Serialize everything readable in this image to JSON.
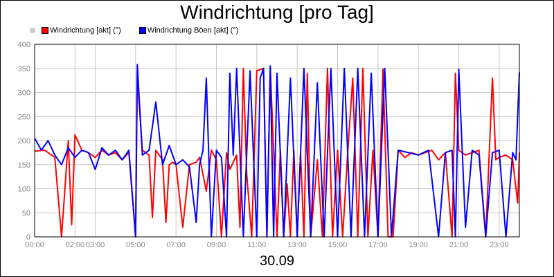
{
  "chart_data": {
    "type": "line",
    "title": "Windrichtung [pro Tag]",
    "xlabel": "30.09",
    "ylabel": "",
    "x_range": [
      "00:00",
      "24:00"
    ],
    "ylim": [
      0,
      400
    ],
    "y_ticks": [
      0,
      50,
      100,
      150,
      200,
      250,
      300,
      350,
      400
    ],
    "x_ticks": [
      "00:00",
      "02:00",
      "03:00",
      "05:00",
      "07:00",
      "09:00",
      "11:00",
      "13:00",
      "15:00",
      "17:00",
      "19:00",
      "21:00",
      "23:00"
    ],
    "grid": true,
    "legend": "top-left",
    "series": [
      {
        "name": "Windrichtung [akt] (°)",
        "color": "#ff0000",
        "x": [
          "00:00",
          "00:30",
          "01:00",
          "01:20",
          "01:40",
          "01:50",
          "02:00",
          "02:20",
          "02:40",
          "03:00",
          "03:20",
          "03:40",
          "04:00",
          "04:20",
          "04:40",
          "05:00",
          "05:05",
          "05:20",
          "05:40",
          "05:50",
          "06:00",
          "06:20",
          "06:30",
          "06:40",
          "06:50",
          "07:00",
          "07:20",
          "07:40",
          "08:00",
          "08:10",
          "08:30",
          "08:45",
          "09:00",
          "09:15",
          "09:30",
          "09:40",
          "10:00",
          "10:10",
          "10:20",
          "10:30",
          "10:45",
          "11:00",
          "11:20",
          "11:30",
          "11:40",
          "11:50",
          "12:00",
          "12:10",
          "12:20",
          "12:30",
          "12:40",
          "12:50",
          "13:00",
          "13:10",
          "13:20",
          "13:30",
          "13:40",
          "14:00",
          "14:15",
          "14:30",
          "14:45",
          "15:00",
          "15:15",
          "15:30",
          "15:45",
          "16:00",
          "16:15",
          "16:30",
          "16:45",
          "17:00",
          "17:15",
          "17:30",
          "17:45",
          "18:00",
          "18:20",
          "18:40",
          "19:00",
          "19:20",
          "19:40",
          "20:00",
          "20:20",
          "20:40",
          "20:50",
          "21:00",
          "21:20",
          "21:40",
          "22:00",
          "22:20",
          "22:40",
          "22:50",
          "23:00",
          "23:20",
          "23:40",
          "23:55",
          "24:00"
        ],
        "y": [
          178,
          180,
          165,
          0,
          200,
          25,
          212,
          180,
          175,
          165,
          180,
          170,
          175,
          160,
          175,
          0,
          335,
          180,
          170,
          40,
          180,
          160,
          30,
          150,
          155,
          150,
          20,
          150,
          155,
          165,
          95,
          180,
          160,
          0,
          175,
          140,
          170,
          20,
          350,
          130,
          0,
          345,
          350,
          0,
          350,
          180,
          0,
          180,
          0,
          110,
          0,
          180,
          0,
          175,
          0,
          340,
          0,
          160,
          0,
          350,
          0,
          180,
          0,
          175,
          330,
          0,
          350,
          0,
          180,
          0,
          348,
          0,
          0,
          180,
          165,
          175,
          170,
          175,
          180,
          160,
          175,
          0,
          340,
          180,
          170,
          175,
          180,
          0,
          330,
          160,
          165,
          170,
          160,
          70,
          175
        ]
      },
      {
        "name": "Windrichtung Böen [akt] (°)",
        "color": "#0000ff",
        "x": [
          "00:00",
          "00:20",
          "00:40",
          "01:00",
          "01:20",
          "01:40",
          "02:00",
          "02:20",
          "02:40",
          "03:00",
          "03:20",
          "03:40",
          "04:00",
          "04:20",
          "04:40",
          "05:00",
          "05:05",
          "05:20",
          "05:40",
          "06:00",
          "06:20",
          "06:40",
          "07:00",
          "07:20",
          "07:40",
          "08:00",
          "08:10",
          "08:20",
          "08:30",
          "08:45",
          "09:00",
          "09:15",
          "09:30",
          "09:40",
          "09:50",
          "10:00",
          "10:20",
          "10:40",
          "11:00",
          "11:10",
          "11:20",
          "11:30",
          "11:40",
          "11:50",
          "12:00",
          "12:20",
          "12:40",
          "13:00",
          "13:20",
          "13:40",
          "14:00",
          "14:20",
          "14:40",
          "15:00",
          "15:20",
          "15:40",
          "16:00",
          "16:20",
          "16:40",
          "17:00",
          "17:20",
          "17:40",
          "18:00",
          "18:30",
          "19:00",
          "19:30",
          "20:00",
          "20:20",
          "20:40",
          "20:50",
          "21:00",
          "21:20",
          "21:40",
          "22:00",
          "22:20",
          "22:40",
          "23:00",
          "23:20",
          "23:40",
          "23:50",
          "24:00"
        ],
        "y": [
          205,
          180,
          200,
          170,
          150,
          185,
          165,
          180,
          175,
          140,
          185,
          170,
          180,
          160,
          180,
          0,
          358,
          170,
          180,
          280,
          150,
          190,
          150,
          160,
          145,
          30,
          150,
          180,
          330,
          0,
          180,
          165,
          0,
          340,
          170,
          350,
          0,
          345,
          0,
          330,
          350,
          0,
          355,
          0,
          340,
          0,
          330,
          0,
          350,
          0,
          320,
          0,
          350,
          0,
          350,
          0,
          350,
          0,
          340,
          0,
          350,
          0,
          180,
          175,
          170,
          180,
          0,
          175,
          180,
          0,
          348,
          20,
          180,
          170,
          0,
          175,
          180,
          0,
          175,
          160,
          342
        ]
      }
    ]
  }
}
